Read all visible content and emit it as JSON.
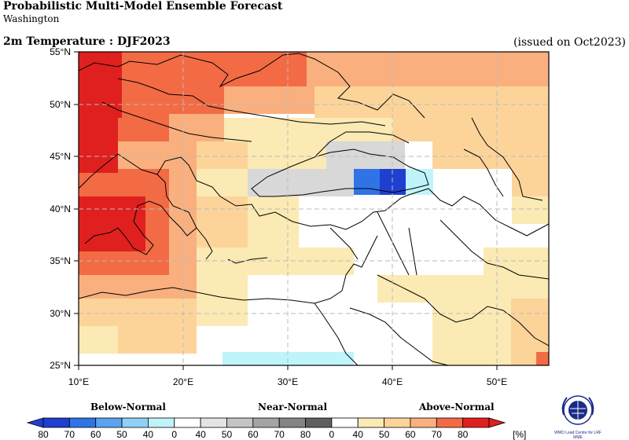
{
  "header": {
    "title": "Probabilistic Multi-Model Ensemble Forecast",
    "centre": "Washington",
    "subtitle": "2m Temperature : DJF2023",
    "issued": "(issued on Oct2023)"
  },
  "map": {
    "lat_labels": [
      "55°N",
      "50°N",
      "45°N",
      "40°N",
      "35°N",
      "30°N",
      "25°N"
    ],
    "lon_labels": [
      "10°E",
      "20°E",
      "30°E",
      "40°E",
      "50°E"
    ],
    "lat_range": [
      25,
      55
    ],
    "lon_range": [
      10,
      55
    ],
    "grid": "dashed",
    "colors": {
      "above_80": "#e0201e",
      "above_70": "#f26b45",
      "above_60": "#f9b07e",
      "above_50": "#fcd49a",
      "above_40": "#fbeab3",
      "near_40": "#d8d8d8",
      "blue_60": "#2f73e6",
      "blue_50": "#5ba3f0",
      "blue_40": "#bff4fb"
    }
  },
  "legend": {
    "below_label": "Below-Normal",
    "near_label": "Near-Normal",
    "above_label": "Above-Normal",
    "ticks": [
      "80",
      "70",
      "60",
      "50",
      "40",
      "0",
      "40",
      "50",
      "60",
      "70",
      "80",
      "0",
      "40",
      "50",
      "60",
      "70",
      "80"
    ],
    "unit": "[%]",
    "colors": [
      "#1f3fd1",
      "#2f73e6",
      "#5ba3f0",
      "#8fd0f7",
      "#bff4fb",
      "#ffffff",
      "#e4e4e4",
      "#c4c4c4",
      "#a4a4a4",
      "#848484",
      "#5f5f5f",
      "#ffffff",
      "#fbeab3",
      "#fcd49a",
      "#f9b07e",
      "#f26b45",
      "#e0201e"
    ]
  },
  "logo": {
    "text": "WMO Lead Centre for LRF MME"
  }
}
